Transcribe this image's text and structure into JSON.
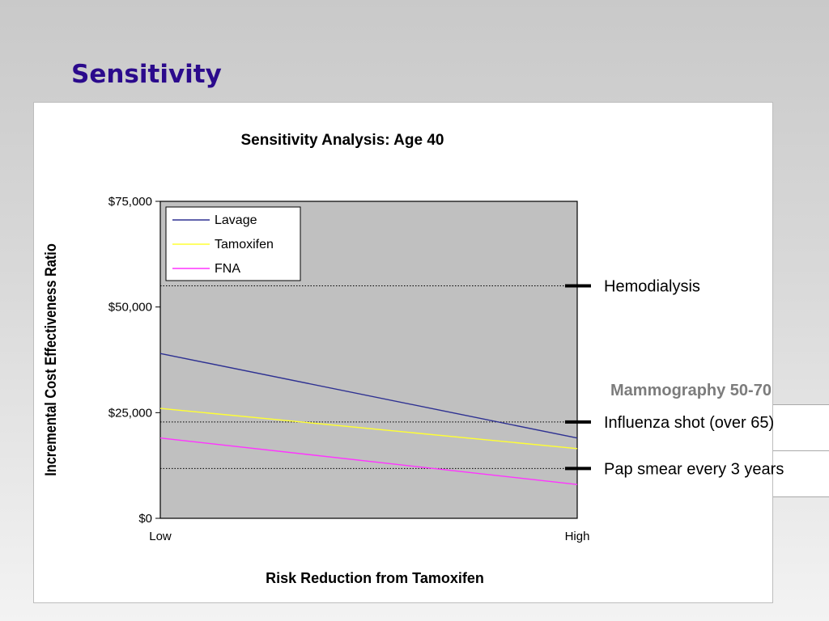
{
  "slide": {
    "title": "Sensitivity",
    "overlay_label": "Mammography 50-70"
  },
  "chart_data": {
    "type": "line",
    "title": "Sensitivity Analysis: Age 40",
    "xlabel": "Risk Reduction from Tamoxifen",
    "ylabel": "Incremental Cost Effectiveness Ratio",
    "categories": [
      "Low",
      "High"
    ],
    "ylim": [
      0,
      75000
    ],
    "yticks": [
      {
        "value": 0,
        "label": "$0"
      },
      {
        "value": 25000,
        "label": "$25,000"
      },
      {
        "value": 50000,
        "label": "$50,000"
      },
      {
        "value": 75000,
        "label": "$75,000"
      }
    ],
    "series": [
      {
        "name": "Lavage",
        "values": [
          39000,
          19000
        ],
        "color": "#2e3192"
      },
      {
        "name": "Tamoxifen",
        "values": [
          26000,
          16500
        ],
        "color": "#ffff33"
      },
      {
        "name": "FNA",
        "values": [
          19000,
          8000
        ],
        "color": "#ff33ff"
      }
    ],
    "reference_lines": [
      {
        "value": 55000,
        "label": "Hemodialysis"
      },
      {
        "value": 22800,
        "label": "Influenza shot (over 65)"
      },
      {
        "value": 11800,
        "label": "Pap smear every 3 years"
      }
    ],
    "grid": false,
    "legend_position": "top-left",
    "plot_background": "#c0c0c0"
  }
}
